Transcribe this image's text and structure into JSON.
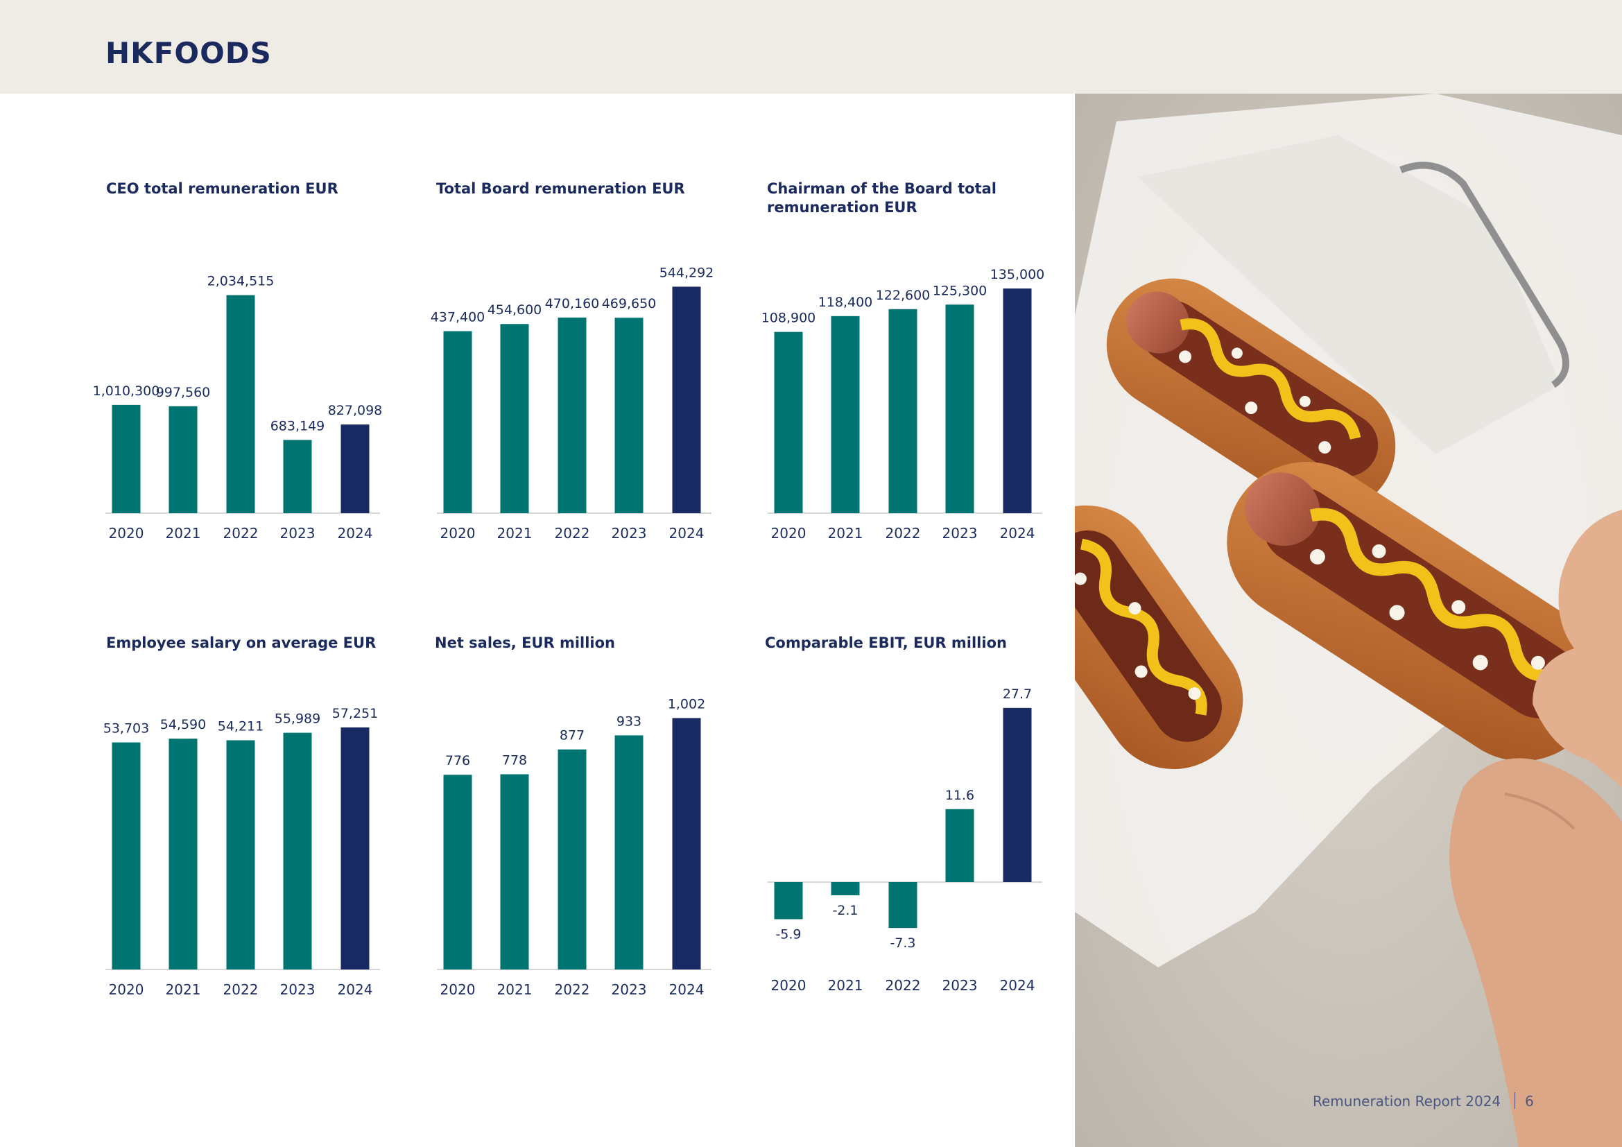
{
  "header": {
    "logo_text": "HKFOODS"
  },
  "footer": {
    "report_title": "Remuneration Report 2024",
    "page_number": "6"
  },
  "colors": {
    "primary_bar": "#007470",
    "highlight_bar": "#182a61",
    "header_bg": "#efebe5",
    "text": "#1a2a5e"
  },
  "photo": {
    "subject": "hot-dogs-photo"
  },
  "chart_data": [
    {
      "id": "ceo",
      "type": "bar",
      "title": "CEO total remuneration EUR",
      "categories": [
        "2020",
        "2021",
        "2022",
        "2023",
        "2024"
      ],
      "values": [
        1010300,
        997560,
        2034515,
        683149,
        827098
      ],
      "labels": [
        "1,010,300",
        "997,560",
        "2,034,515",
        "683,149",
        "827,098"
      ],
      "ylim": [
        0,
        2200000
      ],
      "highlight_last": true
    },
    {
      "id": "board",
      "type": "bar",
      "title": "Total Board remuneration EUR",
      "categories": [
        "2020",
        "2021",
        "2022",
        "2023",
        "2024"
      ],
      "values": [
        437400,
        454600,
        470160,
        469650,
        544292
      ],
      "labels": [
        "437,400",
        "454,600",
        "470,160",
        "469,650",
        "544,292"
      ],
      "ylim": [
        0,
        600000
      ],
      "highlight_last": true
    },
    {
      "id": "chairman",
      "type": "bar",
      "title": "Chairman of the Board  total remuneration EUR",
      "categories": [
        "2020",
        "2021",
        "2022",
        "2023",
        "2024"
      ],
      "values": [
        108900,
        118400,
        122600,
        125300,
        135000
      ],
      "labels": [
        "108,900",
        "118,400",
        "122,600",
        "125,300",
        "135,000"
      ],
      "ylim": [
        0,
        150000
      ],
      "highlight_last": true
    },
    {
      "id": "salary",
      "type": "bar",
      "title": "Employee salary on average EUR",
      "categories": [
        "2020",
        "2021",
        "2022",
        "2023",
        "2024"
      ],
      "values": [
        53703,
        54590,
        54211,
        55989,
        57251
      ],
      "labels": [
        "53,703",
        "54,590",
        "54,211",
        "55,989",
        "57,251"
      ],
      "ylim": [
        0,
        62000
      ],
      "highlight_last": true
    },
    {
      "id": "netsales",
      "type": "bar",
      "title": "Net sales, EUR million",
      "categories": [
        "2020",
        "2021",
        "2022",
        "2023",
        "2024"
      ],
      "values": [
        776,
        778,
        877,
        933,
        1002
      ],
      "labels": [
        "776",
        "778",
        "877",
        "933",
        "1,002"
      ],
      "ylim": [
        0,
        1100
      ],
      "highlight_last": true
    },
    {
      "id": "ebit",
      "type": "bar",
      "title": "Comparable EBIT, EUR million",
      "categories": [
        "2020",
        "2021",
        "2022",
        "2023",
        "2024"
      ],
      "values": [
        -5.9,
        -2.1,
        -7.3,
        11.6,
        27.7
      ],
      "labels": [
        "-5.9",
        "-2.1",
        "-7.3",
        "11.6",
        "27.7"
      ],
      "ylim": [
        -10,
        30
      ],
      "highlight_last": true
    }
  ]
}
